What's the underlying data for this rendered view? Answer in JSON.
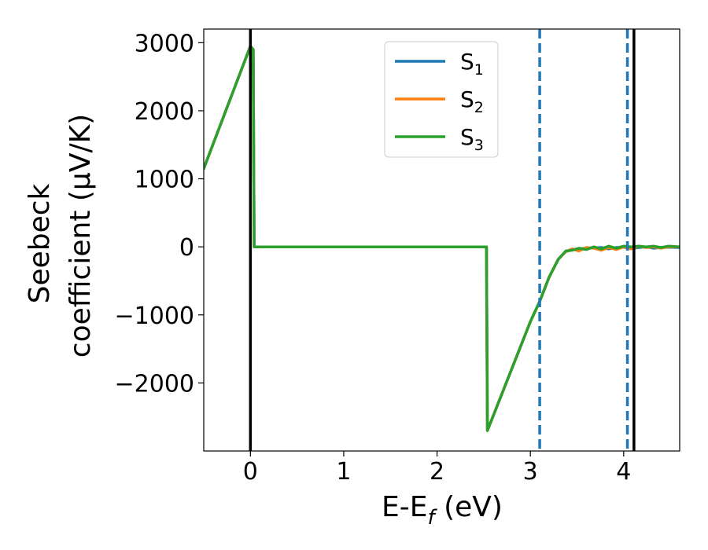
{
  "chart_data": {
    "type": "line",
    "xlabel": {
      "pre": "E-E",
      "sub": "f",
      "post": " (eV)"
    },
    "ylabel": {
      "line1": "Seebeck",
      "line2": "coefficient  (μV/K)"
    },
    "xlim": [
      -0.5,
      4.6
    ],
    "ylim": [
      -3000,
      3200
    ],
    "xticks": [
      0,
      1,
      2,
      3,
      4
    ],
    "yticks": [
      -2000,
      -1000,
      0,
      1000,
      2000,
      3000
    ],
    "ytick_labels": [
      "−2000",
      "−1000",
      "0",
      "1000",
      "2000",
      "3000"
    ],
    "grid": false,
    "legend": {
      "placement": "upper-center"
    },
    "colors": {
      "S1": "#1f77b4",
      "S2": "#ff7f0e",
      "S3": "#2ca02c",
      "vline_solid": "#000000",
      "vline_dashed": "#1f77b4"
    },
    "vlines_solid": [
      0.0,
      4.11
    ],
    "vlines_dashed": [
      3.1,
      4.04
    ],
    "series": [
      {
        "key": "S1",
        "name": {
          "base": "S",
          "sub": "1"
        },
        "x": [
          -0.5,
          0.0,
          0.03,
          0.04,
          2.53,
          2.54,
          3.0,
          3.1,
          3.2,
          3.3,
          3.38,
          3.45,
          3.52,
          3.6,
          3.68,
          3.76,
          3.84,
          3.92,
          4.0,
          4.08,
          4.16,
          4.24,
          4.32,
          4.4,
          4.48,
          4.6
        ],
        "y": [
          1150,
          2950,
          2900,
          0,
          0,
          -2700,
          -1100,
          -800,
          -450,
          -180,
          -70,
          -40,
          -30,
          -20,
          -15,
          -10,
          -30,
          -10,
          -5,
          -25,
          -10,
          0,
          -20,
          -10,
          -5,
          -10
        ]
      },
      {
        "key": "S2",
        "name": {
          "base": "S",
          "sub": "2"
        },
        "x": [
          -0.5,
          0.0,
          0.03,
          0.04,
          2.53,
          2.54,
          3.0,
          3.1,
          3.2,
          3.3,
          3.38,
          3.45,
          3.52,
          3.6,
          3.68,
          3.76,
          3.84,
          3.92,
          4.0,
          4.08,
          4.16,
          4.24,
          4.32,
          4.4,
          4.48,
          4.6
        ],
        "y": [
          1150,
          2950,
          2900,
          0,
          0,
          -2700,
          -1100,
          -800,
          -450,
          -180,
          -70,
          -30,
          -60,
          -10,
          -20,
          -50,
          -10,
          -40,
          0,
          -30,
          10,
          -10,
          0,
          -20,
          0,
          0
        ]
      },
      {
        "key": "S3",
        "name": {
          "base": "S",
          "sub": "3"
        },
        "x": [
          -0.5,
          0.0,
          0.03,
          0.04,
          2.53,
          2.54,
          3.0,
          3.1,
          3.2,
          3.3,
          3.38,
          3.45,
          3.52,
          3.6,
          3.68,
          3.76,
          3.84,
          3.92,
          4.0,
          4.08,
          4.16,
          4.24,
          4.32,
          4.4,
          4.48,
          4.6
        ],
        "y": [
          1150,
          2950,
          2900,
          0,
          0,
          -2700,
          -1100,
          -800,
          -450,
          -180,
          -60,
          -50,
          -20,
          -40,
          0,
          -30,
          10,
          -20,
          10,
          0,
          10,
          0,
          10,
          -10,
          10,
          0
        ]
      }
    ]
  }
}
